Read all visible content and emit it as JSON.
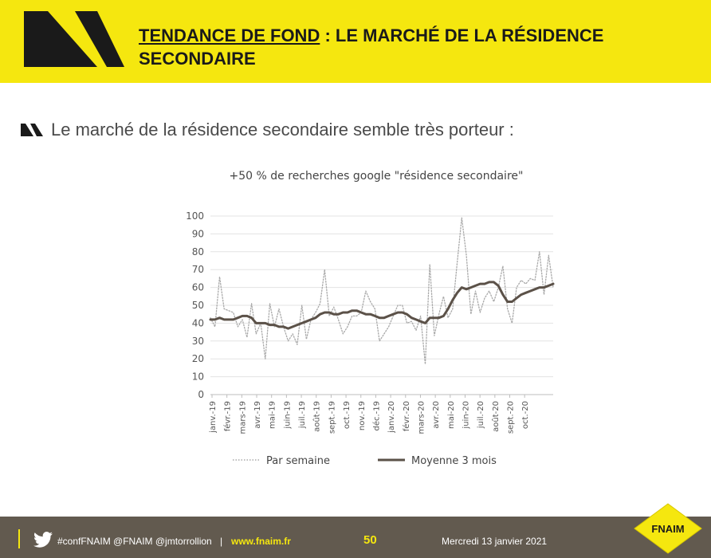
{
  "header": {
    "title_underlined": "TENDANCE DE FOND",
    "title_rest": " : LE MARCHÉ DE LA RÉSIDENCE SECONDAIRE"
  },
  "subtitle": "Le marché de la résidence secondaire semble très porteur :",
  "chart_data": {
    "type": "line",
    "title": "+50 % de recherches google \"résidence secondaire\"",
    "ylim": [
      0,
      100
    ],
    "yticks": [
      0,
      10,
      20,
      30,
      40,
      50,
      60,
      70,
      80,
      90,
      100
    ],
    "grid": true,
    "legend_position": "bottom",
    "x_tick_labels": [
      "janv.-19",
      "févr.-19",
      "mars-19",
      "avr.-19",
      "mai-19",
      "juin-19",
      "juil.-19",
      "août-19",
      "sept.-19",
      "oct.-19",
      "nov.-19",
      "déc.-19",
      "janv.-20",
      "févr.-20",
      "mars-20",
      "avr.-20",
      "mai-20",
      "juin-20",
      "juil.-20",
      "août-20",
      "sept.-20",
      "oct.-20"
    ],
    "series": [
      {
        "name": "Par semaine",
        "style": "dotted",
        "color": "#a9a9a9",
        "values": [
          43,
          38,
          66,
          48,
          47,
          46,
          38,
          42,
          32,
          51,
          34,
          40,
          20,
          51,
          38,
          48,
          38,
          30,
          34,
          28,
          50,
          31,
          42,
          46,
          51,
          70,
          44,
          49,
          42,
          34,
          38,
          44,
          44,
          46,
          58,
          52,
          48,
          30,
          34,
          38,
          44,
          50,
          50,
          40,
          41,
          36,
          44,
          17,
          73,
          33,
          45,
          55,
          43,
          48,
          74,
          99,
          78,
          45,
          58,
          46,
          54,
          58,
          52,
          60,
          72,
          48,
          40,
          60,
          64,
          62,
          65,
          64,
          80,
          56,
          78,
          60
        ]
      },
      {
        "name": "Moyenne 3 mois",
        "style": "solid",
        "color": "#5b5148",
        "values": [
          42,
          42,
          43,
          42,
          42,
          42,
          43,
          44,
          44,
          43,
          40,
          40,
          40,
          39,
          39,
          38,
          38,
          37,
          38,
          39,
          40,
          41,
          42,
          43,
          45,
          46,
          46,
          45,
          45,
          46,
          46,
          47,
          47,
          46,
          45,
          45,
          44,
          43,
          43,
          44,
          45,
          46,
          46,
          45,
          43,
          42,
          41,
          40,
          43,
          43,
          43,
          44,
          48,
          53,
          57,
          60,
          59,
          60,
          61,
          62,
          62,
          63,
          63,
          61,
          56,
          52,
          52,
          54,
          56,
          57,
          58,
          59,
          60,
          60,
          61,
          62
        ]
      }
    ]
  },
  "footer": {
    "tags": "#confFNAIM @FNAIM @jmtorrollion",
    "separator": "|",
    "site": "www.fnaim.fr",
    "page": "50",
    "date": "Mercredi 13 janvier 2021"
  },
  "logo": {
    "text": "FNAIM"
  },
  "colors": {
    "brand_yellow": "#f5e70f",
    "footer_brown": "#625a4f"
  }
}
